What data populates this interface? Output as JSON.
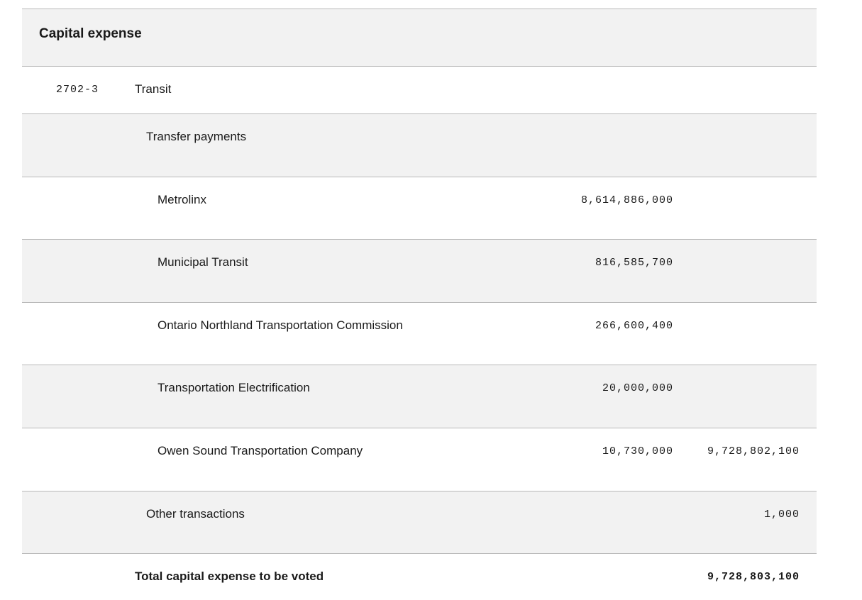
{
  "section": {
    "title": "Capital expense"
  },
  "vote": {
    "number": "2702-3",
    "name": "Transit"
  },
  "groups": {
    "transfer_payments": "Transfer payments",
    "other_transactions": "Other transactions"
  },
  "items": [
    {
      "label": "Metrolinx",
      "amount": "8,614,886,000",
      "subtotal": ""
    },
    {
      "label": "Municipal Transit",
      "amount": "816,585,700",
      "subtotal": ""
    },
    {
      "label": "Ontario Northland Transportation Commission",
      "amount": "266,600,400",
      "subtotal": ""
    },
    {
      "label": "Transportation Electrification",
      "amount": "20,000,000",
      "subtotal": ""
    },
    {
      "label": "Owen Sound Transportation Company",
      "amount": "10,730,000",
      "subtotal": "9,728,802,100"
    }
  ],
  "other_transactions_amount": "1,000",
  "total": {
    "label": "Total capital expense to be voted",
    "amount": "9,728,803,100"
  },
  "colors": {
    "shaded_row": "#f2f2f2",
    "row_border": "#b8b8b8",
    "text": "#1a1a1a"
  }
}
